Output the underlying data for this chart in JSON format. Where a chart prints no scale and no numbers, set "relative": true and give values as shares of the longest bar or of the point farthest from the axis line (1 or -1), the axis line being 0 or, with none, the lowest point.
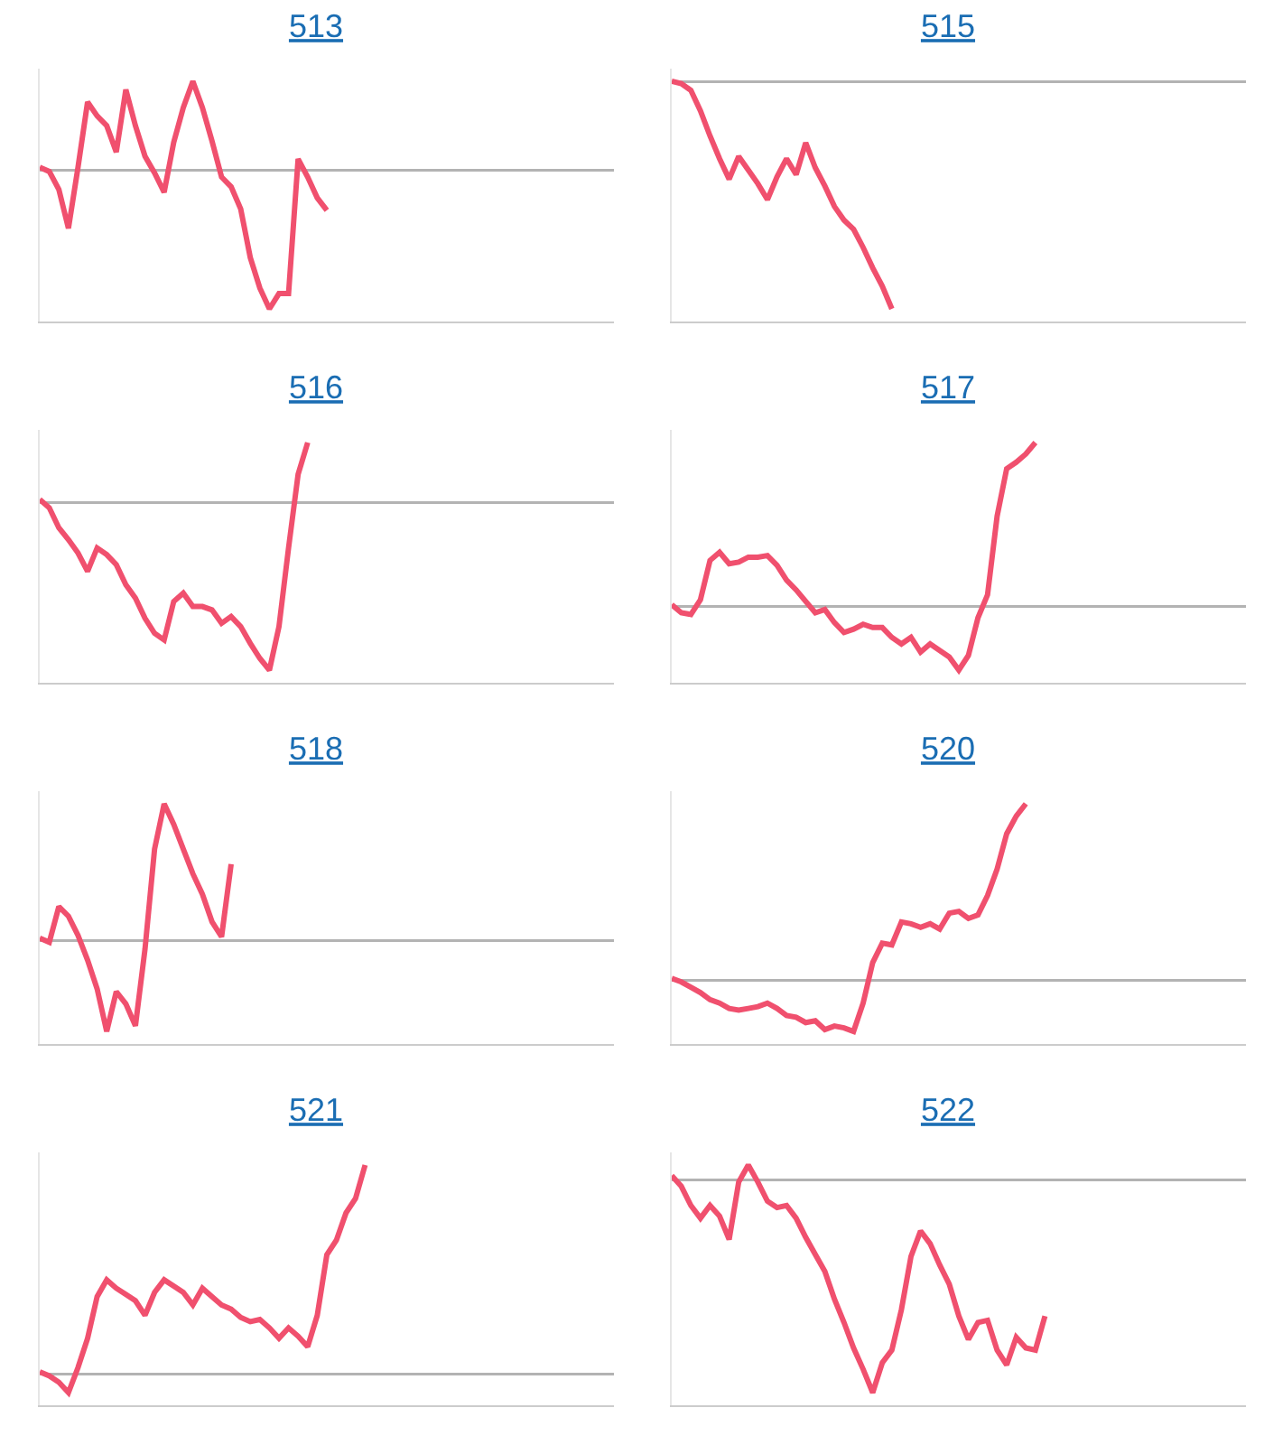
{
  "chart_data": [
    {
      "type": "line",
      "title": "513",
      "relative": true,
      "color": "#f0506e",
      "categories": [
        null,
        null,
        null,
        null,
        null,
        null,
        null,
        null,
        null,
        null,
        null,
        null,
        null,
        null,
        null,
        null,
        null,
        null,
        null,
        null,
        null,
        null,
        null,
        null,
        null,
        null,
        null,
        null,
        null,
        null,
        null,
        null,
        null,
        null,
        null,
        null,
        null,
        null,
        null,
        null,
        null,
        null,
        null,
        null,
        null,
        null,
        null,
        null,
        null,
        null,
        null,
        null,
        null,
        null,
        null,
        null,
        null,
        null,
        null,
        null,
        null
      ],
      "values": [
        0.02,
        -0.01,
        -0.14,
        -0.42,
        0.02,
        0.49,
        0.39,
        0.32,
        0.13,
        0.58,
        0.32,
        0.1,
        -0.02,
        -0.16,
        0.2,
        0.45,
        0.64,
        0.45,
        0.21,
        -0.05,
        -0.12,
        -0.28,
        -0.63,
        -0.85,
        -1,
        -0.89,
        -0.89,
        0.08,
        -0.05,
        -0.2,
        -0.29,
        null,
        null,
        null,
        null,
        null,
        null,
        null,
        null,
        null,
        null,
        null,
        null,
        null,
        null,
        null,
        null,
        null,
        null,
        null,
        null,
        null,
        null,
        null,
        null,
        null,
        null,
        null,
        null,
        null,
        null
      ]
    },
    {
      "type": "line",
      "title": "515",
      "relative": true,
      "color": "#f0506e",
      "categories": [
        null,
        null,
        null,
        null,
        null,
        null,
        null,
        null,
        null,
        null,
        null,
        null,
        null,
        null,
        null,
        null,
        null,
        null,
        null,
        null,
        null,
        null,
        null,
        null,
        null,
        null,
        null,
        null,
        null,
        null,
        null,
        null,
        null,
        null,
        null,
        null,
        null,
        null,
        null,
        null,
        null,
        null,
        null,
        null,
        null,
        null,
        null,
        null,
        null,
        null,
        null,
        null,
        null,
        null,
        null,
        null,
        null,
        null,
        null,
        null,
        null
      ],
      "values": [
        0,
        -0.01,
        -0.04,
        -0.13,
        -0.24,
        -0.34,
        -0.43,
        -0.33,
        -0.39,
        -0.45,
        -0.52,
        -0.42,
        -0.34,
        -0.41,
        -0.27,
        -0.38,
        -0.46,
        -0.55,
        -0.61,
        -0.65,
        -0.73,
        -0.82,
        -0.9,
        -1,
        null,
        null,
        null,
        null,
        null,
        null,
        null,
        null,
        null,
        null,
        null,
        null,
        null,
        null,
        null,
        null,
        null,
        null,
        null,
        null,
        null,
        null,
        null,
        null,
        null,
        null,
        null,
        null,
        null,
        null,
        null,
        null,
        null,
        null,
        null,
        null,
        null
      ]
    },
    {
      "type": "line",
      "title": "516",
      "relative": true,
      "color": "#f0506e",
      "categories": [
        null,
        null,
        null,
        null,
        null,
        null,
        null,
        null,
        null,
        null,
        null,
        null,
        null,
        null,
        null,
        null,
        null,
        null,
        null,
        null,
        null,
        null,
        null,
        null,
        null,
        null,
        null,
        null,
        null,
        null,
        null,
        null,
        null,
        null,
        null,
        null,
        null,
        null,
        null,
        null,
        null,
        null,
        null,
        null,
        null,
        null,
        null,
        null,
        null,
        null,
        null,
        null,
        null,
        null,
        null,
        null,
        null,
        null,
        null,
        null,
        null
      ],
      "values": [
        0.02,
        -0.03,
        -0.15,
        -0.22,
        -0.3,
        -0.41,
        -0.27,
        -0.31,
        -0.37,
        -0.49,
        -0.57,
        -0.69,
        -0.78,
        -0.82,
        -0.59,
        -0.54,
        -0.62,
        -0.62,
        -0.64,
        -0.72,
        -0.68,
        -0.74,
        -0.84,
        -0.93,
        -1,
        -0.74,
        -0.27,
        0.17,
        0.36,
        null,
        null,
        null,
        null,
        null,
        null,
        null,
        null,
        null,
        null,
        null,
        null,
        null,
        null,
        null,
        null,
        null,
        null,
        null,
        null,
        null,
        null,
        null,
        null,
        null,
        null,
        null,
        null,
        null,
        null,
        null,
        null
      ]
    },
    {
      "type": "line",
      "title": "517",
      "relative": true,
      "color": "#f0506e",
      "categories": [
        null,
        null,
        null,
        null,
        null,
        null,
        null,
        null,
        null,
        null,
        null,
        null,
        null,
        null,
        null,
        null,
        null,
        null,
        null,
        null,
        null,
        null,
        null,
        null,
        null,
        null,
        null,
        null,
        null,
        null,
        null,
        null,
        null,
        null,
        null,
        null,
        null,
        null,
        null,
        null,
        null,
        null,
        null,
        null,
        null,
        null,
        null,
        null,
        null,
        null,
        null,
        null,
        null,
        null,
        null,
        null,
        null,
        null,
        null,
        null,
        null
      ],
      "values": [
        0.01,
        -0.04,
        -0.05,
        0.04,
        0.28,
        0.33,
        0.26,
        0.27,
        0.3,
        0.3,
        0.31,
        0.25,
        0.16,
        0.1,
        0.03,
        -0.04,
        -0.02,
        -0.1,
        -0.16,
        -0.14,
        -0.11,
        -0.13,
        -0.13,
        -0.19,
        -0.23,
        -0.19,
        -0.28,
        -0.23,
        -0.27,
        -0.31,
        -0.39,
        -0.3,
        -0.07,
        0.07,
        0.55,
        0.84,
        0.88,
        0.93,
        1,
        null,
        null,
        null,
        null,
        null,
        null,
        null,
        null,
        null,
        null,
        null,
        null,
        null,
        null,
        null,
        null,
        null,
        null,
        null,
        null,
        null,
        null
      ]
    },
    {
      "type": "line",
      "title": "518",
      "relative": true,
      "color": "#f0506e",
      "categories": [
        null,
        null,
        null,
        null,
        null,
        null,
        null,
        null,
        null,
        null,
        null,
        null,
        null,
        null,
        null,
        null,
        null,
        null,
        null,
        null,
        null,
        null,
        null,
        null,
        null,
        null,
        null,
        null,
        null,
        null,
        null,
        null,
        null,
        null,
        null,
        null,
        null,
        null,
        null,
        null,
        null,
        null,
        null,
        null,
        null,
        null,
        null,
        null,
        null,
        null,
        null,
        null,
        null,
        null,
        null,
        null,
        null,
        null,
        null,
        null,
        null
      ],
      "values": [
        0.02,
        -0.01,
        0.25,
        0.18,
        0.04,
        -0.14,
        -0.35,
        -0.66,
        -0.37,
        -0.46,
        -0.62,
        -0.06,
        0.67,
        1,
        0.85,
        0.67,
        0.49,
        0.34,
        0.14,
        0.03,
        0.56,
        null,
        null,
        null,
        null,
        null,
        null,
        null,
        null,
        null,
        null,
        null,
        null,
        null,
        null,
        null,
        null,
        null,
        null,
        null,
        null,
        null,
        null,
        null,
        null,
        null,
        null,
        null,
        null,
        null,
        null,
        null,
        null,
        null,
        null,
        null,
        null,
        null,
        null,
        null,
        null
      ]
    },
    {
      "type": "line",
      "title": "520",
      "relative": true,
      "color": "#f0506e",
      "categories": [
        null,
        null,
        null,
        null,
        null,
        null,
        null,
        null,
        null,
        null,
        null,
        null,
        null,
        null,
        null,
        null,
        null,
        null,
        null,
        null,
        null,
        null,
        null,
        null,
        null,
        null,
        null,
        null,
        null,
        null,
        null,
        null,
        null,
        null,
        null,
        null,
        null,
        null,
        null,
        null,
        null,
        null,
        null,
        null,
        null,
        null,
        null,
        null,
        null,
        null,
        null,
        null,
        null,
        null,
        null,
        null,
        null,
        null,
        null,
        null,
        null
      ],
      "values": [
        0.01,
        -0.01,
        -0.04,
        -0.07,
        -0.11,
        -0.13,
        -0.16,
        -0.17,
        -0.16,
        -0.15,
        -0.13,
        -0.16,
        -0.2,
        -0.21,
        -0.24,
        -0.23,
        -0.28,
        -0.26,
        -0.27,
        -0.29,
        -0.13,
        0.1,
        0.21,
        0.2,
        0.33,
        0.32,
        0.3,
        0.32,
        0.29,
        0.38,
        0.39,
        0.35,
        0.37,
        0.48,
        0.63,
        0.83,
        0.93,
        1,
        null,
        null,
        null,
        null,
        null,
        null,
        null,
        null,
        null,
        null,
        null,
        null,
        null,
        null,
        null,
        null,
        null,
        null,
        null,
        null,
        null,
        null,
        null
      ]
    },
    {
      "type": "line",
      "title": "521",
      "relative": true,
      "color": "#f0506e",
      "categories": [
        null,
        null,
        null,
        null,
        null,
        null,
        null,
        null,
        null,
        null,
        null,
        null,
        null,
        null,
        null,
        null,
        null,
        null,
        null,
        null,
        null,
        null,
        null,
        null,
        null,
        null,
        null,
        null,
        null,
        null,
        null,
        null,
        null,
        null,
        null,
        null,
        null,
        null,
        null,
        null,
        null,
        null,
        null,
        null,
        null,
        null,
        null,
        null,
        null,
        null,
        null,
        null,
        null,
        null,
        null,
        null,
        null,
        null,
        null,
        null,
        null
      ],
      "values": [
        0.01,
        -0.01,
        -0.04,
        -0.09,
        0.03,
        0.17,
        0.37,
        0.45,
        0.41,
        0.38,
        0.35,
        0.28,
        0.39,
        0.45,
        0.42,
        0.39,
        0.33,
        0.41,
        0.37,
        0.33,
        0.31,
        0.27,
        0.25,
        0.26,
        0.22,
        0.17,
        0.22,
        0.18,
        0.13,
        0.28,
        0.57,
        0.64,
        0.77,
        0.84,
        1,
        null,
        null,
        null,
        null,
        null,
        null,
        null,
        null,
        null,
        null,
        null,
        null,
        null,
        null,
        null,
        null,
        null,
        null,
        null,
        null,
        null,
        null,
        null,
        null,
        null,
        null
      ]
    },
    {
      "type": "line",
      "title": "522",
      "relative": true,
      "color": "#f0506e",
      "categories": [
        null,
        null,
        null,
        null,
        null,
        null,
        null,
        null,
        null,
        null,
        null,
        null,
        null,
        null,
        null,
        null,
        null,
        null,
        null,
        null,
        null,
        null,
        null,
        null,
        null,
        null,
        null,
        null,
        null,
        null,
        null,
        null,
        null,
        null,
        null,
        null,
        null,
        null,
        null,
        null,
        null,
        null,
        null,
        null,
        null,
        null,
        null,
        null,
        null,
        null,
        null,
        null,
        null,
        null,
        null,
        null,
        null,
        null,
        null,
        null,
        null
      ],
      "values": [
        0.02,
        -0.03,
        -0.12,
        -0.18,
        -0.12,
        -0.17,
        -0.28,
        -0.01,
        0.07,
        -0.01,
        -0.1,
        -0.13,
        -0.12,
        -0.18,
        -0.27,
        -0.35,
        -0.43,
        -0.56,
        -0.67,
        -0.79,
        -0.89,
        -1,
        -0.86,
        -0.8,
        -0.61,
        -0.36,
        -0.24,
        -0.3,
        -0.4,
        -0.49,
        -0.64,
        -0.75,
        -0.67,
        -0.66,
        -0.8,
        -0.87,
        -0.74,
        -0.79,
        -0.8,
        -0.64,
        null,
        null,
        null,
        null,
        null,
        null,
        null,
        null,
        null,
        null,
        null,
        null,
        null,
        null,
        null,
        null,
        null,
        null,
        null,
        null,
        null
      ]
    }
  ]
}
